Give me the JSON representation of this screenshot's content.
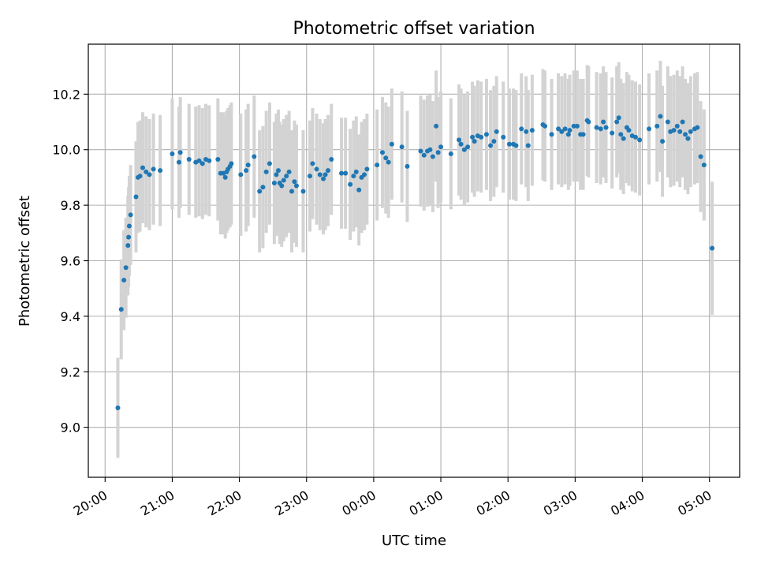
{
  "chart_data": {
    "type": "scatter",
    "title": "Photometric offset variation",
    "xlabel": "UTC time",
    "ylabel": "Photometric offset",
    "x_unit": "hours",
    "xlim": [
      -0.25,
      9.45
    ],
    "ylim": [
      8.82,
      10.38
    ],
    "x_ticks": [
      0,
      1,
      2,
      3,
      4,
      5,
      6,
      7,
      8,
      9
    ],
    "x_tick_labels": [
      "20:00",
      "21:00",
      "22:00",
      "23:00",
      "00:00",
      "01:00",
      "02:00",
      "03:00",
      "04:00",
      "05:00"
    ],
    "y_ticks": [
      9.0,
      9.2,
      9.4,
      9.6,
      9.8,
      10.0,
      10.2
    ],
    "y_tick_labels": [
      "9.0",
      "9.2",
      "9.4",
      "9.6",
      "9.8",
      "10.0",
      "10.2"
    ],
    "grid": true,
    "point_color": "#1f77b4",
    "errorbar_color": "#d3d3d3",
    "points": [
      [
        0.19,
        9.07,
        0.18
      ],
      [
        0.24,
        9.425,
        0.18
      ],
      [
        0.28,
        9.53,
        0.18
      ],
      [
        0.31,
        9.575,
        0.18
      ],
      [
        0.34,
        9.655,
        0.18
      ],
      [
        0.35,
        9.685,
        0.18
      ],
      [
        0.36,
        9.725,
        0.18
      ],
      [
        0.38,
        9.765,
        0.18
      ],
      [
        0.46,
        9.83,
        0.2
      ],
      [
        0.49,
        9.9,
        0.2
      ],
      [
        0.52,
        9.905,
        0.2
      ],
      [
        0.56,
        9.935,
        0.2
      ],
      [
        0.61,
        9.92,
        0.2
      ],
      [
        0.66,
        9.91,
        0.2
      ],
      [
        0.72,
        9.93,
        0.2
      ],
      [
        0.82,
        9.925,
        0.2
      ],
      [
        1.0,
        9.985,
        0.2
      ],
      [
        1.1,
        9.955,
        0.2
      ],
      [
        1.12,
        9.99,
        0.2
      ],
      [
        1.25,
        9.965,
        0.2
      ],
      [
        1.35,
        9.955,
        0.2
      ],
      [
        1.4,
        9.96,
        0.2
      ],
      [
        1.45,
        9.95,
        0.2
      ],
      [
        1.5,
        9.965,
        0.2
      ],
      [
        1.55,
        9.96,
        0.2
      ],
      [
        1.68,
        9.965,
        0.22
      ],
      [
        1.72,
        9.915,
        0.22
      ],
      [
        1.76,
        9.915,
        0.22
      ],
      [
        1.79,
        9.9,
        0.22
      ],
      [
        1.81,
        9.92,
        0.22
      ],
      [
        1.83,
        9.93,
        0.22
      ],
      [
        1.86,
        9.94,
        0.22
      ],
      [
        1.88,
        9.95,
        0.22
      ],
      [
        2.02,
        9.91,
        0.22
      ],
      [
        2.1,
        9.925,
        0.22
      ],
      [
        2.13,
        9.945,
        0.22
      ],
      [
        2.22,
        9.975,
        0.22
      ],
      [
        2.3,
        9.85,
        0.22
      ],
      [
        2.35,
        9.865,
        0.22
      ],
      [
        2.4,
        9.92,
        0.22
      ],
      [
        2.45,
        9.95,
        0.22
      ],
      [
        2.52,
        9.88,
        0.22
      ],
      [
        2.55,
        9.91,
        0.22
      ],
      [
        2.58,
        9.925,
        0.22
      ],
      [
        2.6,
        9.88,
        0.22
      ],
      [
        2.63,
        9.87,
        0.22
      ],
      [
        2.66,
        9.89,
        0.22
      ],
      [
        2.7,
        9.905,
        0.22
      ],
      [
        2.74,
        9.92,
        0.22
      ],
      [
        2.78,
        9.85,
        0.22
      ],
      [
        2.82,
        9.885,
        0.22
      ],
      [
        2.85,
        9.87,
        0.22
      ],
      [
        2.95,
        9.85,
        0.22
      ],
      [
        3.05,
        9.905,
        0.2
      ],
      [
        3.09,
        9.95,
        0.2
      ],
      [
        3.15,
        9.93,
        0.2
      ],
      [
        3.2,
        9.91,
        0.2
      ],
      [
        3.25,
        9.895,
        0.2
      ],
      [
        3.28,
        9.91,
        0.2
      ],
      [
        3.32,
        9.925,
        0.2
      ],
      [
        3.37,
        9.965,
        0.2
      ],
      [
        3.52,
        9.915,
        0.2
      ],
      [
        3.58,
        9.915,
        0.2
      ],
      [
        3.65,
        9.875,
        0.2
      ],
      [
        3.7,
        9.905,
        0.2
      ],
      [
        3.74,
        9.92,
        0.2
      ],
      [
        3.78,
        9.855,
        0.2
      ],
      [
        3.82,
        9.9,
        0.2
      ],
      [
        3.86,
        9.91,
        0.2
      ],
      [
        3.9,
        9.93,
        0.2
      ],
      [
        4.05,
        9.945,
        0.2
      ],
      [
        4.13,
        9.99,
        0.2
      ],
      [
        4.18,
        9.97,
        0.2
      ],
      [
        4.22,
        9.955,
        0.2
      ],
      [
        4.27,
        10.02,
        0.2
      ],
      [
        4.42,
        10.01,
        0.2
      ],
      [
        4.5,
        9.94,
        0.2
      ],
      [
        4.7,
        9.995,
        0.2
      ],
      [
        4.75,
        9.98,
        0.2
      ],
      [
        4.8,
        9.995,
        0.2
      ],
      [
        4.84,
        10.0,
        0.2
      ],
      [
        4.88,
        9.975,
        0.2
      ],
      [
        4.93,
        10.085,
        0.2
      ],
      [
        4.96,
        9.99,
        0.2
      ],
      [
        5.0,
        10.01,
        0.2
      ],
      [
        5.15,
        9.985,
        0.2
      ],
      [
        5.27,
        10.035,
        0.2
      ],
      [
        5.3,
        10.02,
        0.2
      ],
      [
        5.35,
        10.0,
        0.2
      ],
      [
        5.4,
        10.01,
        0.2
      ],
      [
        5.47,
        10.045,
        0.2
      ],
      [
        5.5,
        10.03,
        0.2
      ],
      [
        5.55,
        10.05,
        0.2
      ],
      [
        5.6,
        10.045,
        0.2
      ],
      [
        5.68,
        10.055,
        0.2
      ],
      [
        5.74,
        10.015,
        0.2
      ],
      [
        5.79,
        10.03,
        0.2
      ],
      [
        5.83,
        10.065,
        0.2
      ],
      [
        5.93,
        10.045,
        0.2
      ],
      [
        6.02,
        10.02,
        0.2
      ],
      [
        6.08,
        10.02,
        0.2
      ],
      [
        6.12,
        10.015,
        0.2
      ],
      [
        6.2,
        10.075,
        0.2
      ],
      [
        6.27,
        10.065,
        0.2
      ],
      [
        6.3,
        10.015,
        0.2
      ],
      [
        6.36,
        10.07,
        0.2
      ],
      [
        6.52,
        10.09,
        0.2
      ],
      [
        6.55,
        10.085,
        0.2
      ],
      [
        6.65,
        10.055,
        0.2
      ],
      [
        6.75,
        10.075,
        0.2
      ],
      [
        6.8,
        10.065,
        0.2
      ],
      [
        6.85,
        10.075,
        0.2
      ],
      [
        6.9,
        10.055,
        0.2
      ],
      [
        6.92,
        10.07,
        0.2
      ],
      [
        6.98,
        10.085,
        0.2
      ],
      [
        7.03,
        10.085,
        0.2
      ],
      [
        7.08,
        10.055,
        0.2
      ],
      [
        7.12,
        10.055,
        0.2
      ],
      [
        7.18,
        10.105,
        0.2
      ],
      [
        7.2,
        10.1,
        0.2
      ],
      [
        7.32,
        10.08,
        0.2
      ],
      [
        7.38,
        10.075,
        0.2
      ],
      [
        7.42,
        10.1,
        0.2
      ],
      [
        7.46,
        10.08,
        0.2
      ],
      [
        7.55,
        10.06,
        0.2
      ],
      [
        7.62,
        10.1,
        0.2
      ],
      [
        7.65,
        10.115,
        0.2
      ],
      [
        7.68,
        10.055,
        0.2
      ],
      [
        7.72,
        10.04,
        0.2
      ],
      [
        7.77,
        10.08,
        0.2
      ],
      [
        7.8,
        10.07,
        0.2
      ],
      [
        7.85,
        10.05,
        0.2
      ],
      [
        7.9,
        10.045,
        0.2
      ],
      [
        7.96,
        10.035,
        0.2
      ],
      [
        8.1,
        10.075,
        0.2
      ],
      [
        8.22,
        10.085,
        0.2
      ],
      [
        8.27,
        10.12,
        0.2
      ],
      [
        8.3,
        10.03,
        0.2
      ],
      [
        8.38,
        10.1,
        0.2
      ],
      [
        8.42,
        10.065,
        0.2
      ],
      [
        8.47,
        10.07,
        0.2
      ],
      [
        8.52,
        10.085,
        0.2
      ],
      [
        8.56,
        10.065,
        0.2
      ],
      [
        8.6,
        10.1,
        0.2
      ],
      [
        8.64,
        10.055,
        0.2
      ],
      [
        8.68,
        10.04,
        0.2
      ],
      [
        8.72,
        10.065,
        0.2
      ],
      [
        8.78,
        10.075,
        0.2
      ],
      [
        8.82,
        10.08,
        0.2
      ],
      [
        8.87,
        9.975,
        0.2
      ],
      [
        8.92,
        9.945,
        0.2
      ],
      [
        9.04,
        9.645,
        0.24
      ]
    ]
  }
}
